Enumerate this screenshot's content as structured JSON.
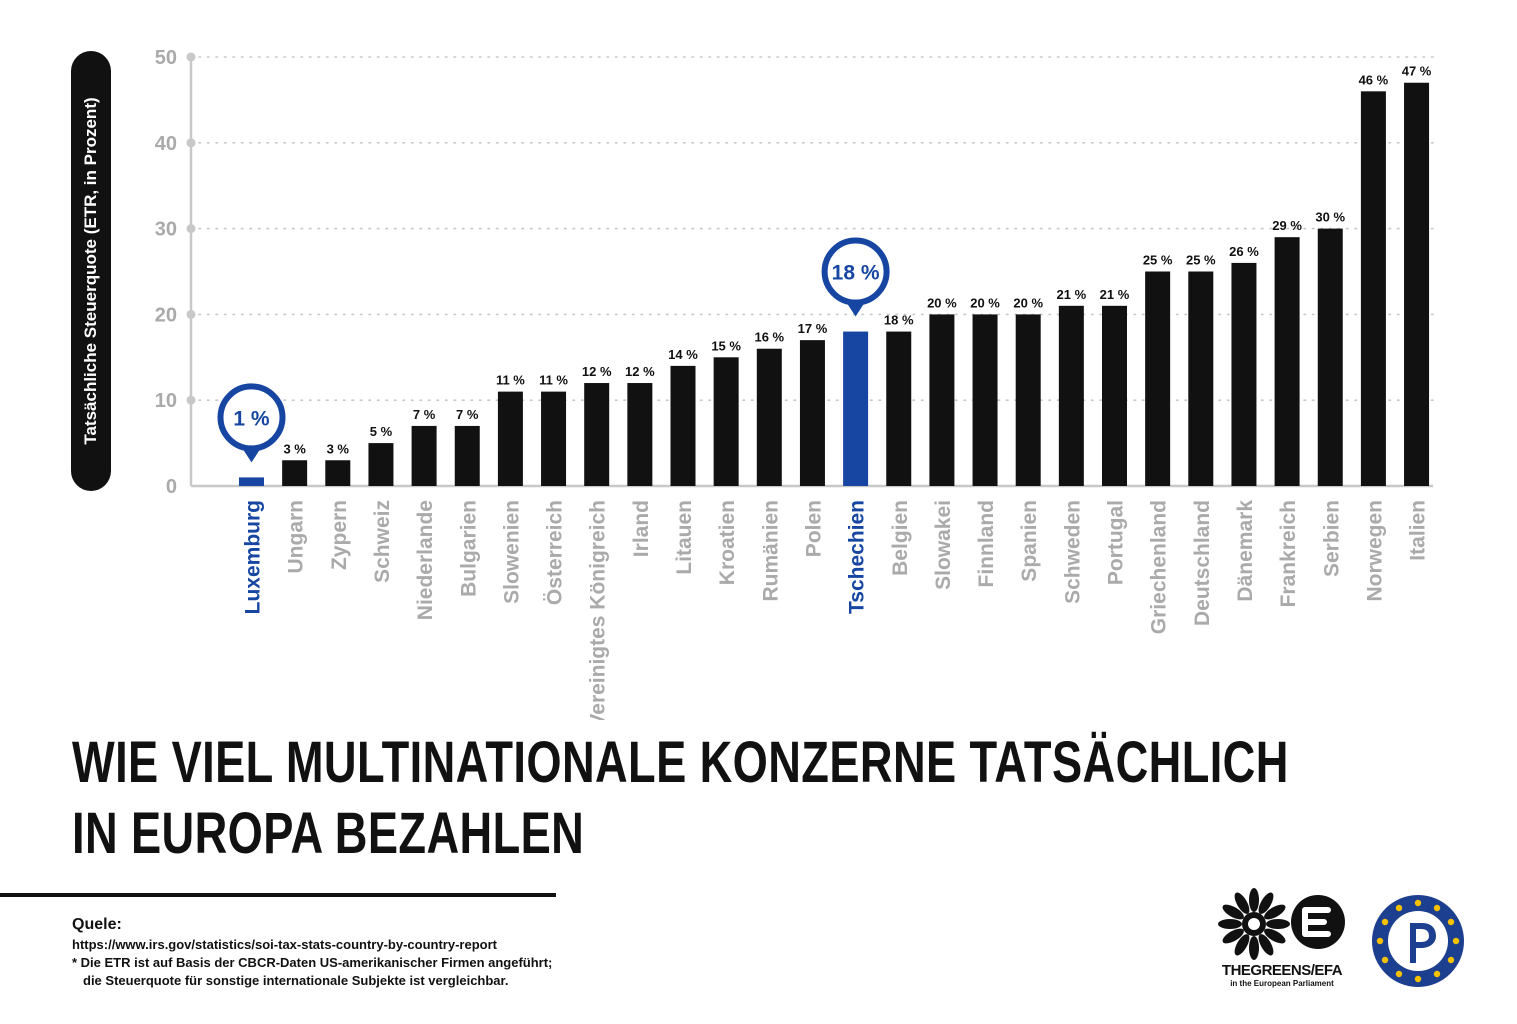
{
  "chart_data": {
    "type": "bar",
    "ylabel": "Tatsächliche Steuerquote (ETR, in Prozent)",
    "ylim": [
      0,
      50
    ],
    "yticks": [
      0,
      10,
      20,
      30,
      40,
      50
    ],
    "grid": true,
    "categories": [
      "Luxemburg",
      "Ungarn",
      "Zypern",
      "Schweiz",
      "Niederlande",
      "Bulgarien",
      "Slowenien",
      "Österreich",
      "Vereinigtes Königreich",
      "Irland",
      "Litauen",
      "Kroatien",
      "Rumänien",
      "Polen",
      "Tschechien",
      "Belgien",
      "Slowakei",
      "Finnland",
      "Spanien",
      "Schweden",
      "Portugal",
      "Griechenland",
      "Deutschland",
      "Dänemark",
      "Frankreich",
      "Serbien",
      "Norwegen",
      "Italien"
    ],
    "values": [
      1,
      3,
      3,
      5,
      7,
      7,
      11,
      11,
      12,
      12,
      14,
      15,
      16,
      17,
      18,
      18,
      20,
      20,
      20,
      21,
      21,
      25,
      25,
      26,
      29,
      30,
      46,
      47
    ],
    "value_labels": [
      "1 %",
      "3 %",
      "3 %",
      "5 %",
      "7 %",
      "7 %",
      "11 %",
      "11 %",
      "12 %",
      "12 %",
      "14 %",
      "15 %",
      "16 %",
      "17 %",
      "18 %",
      "18 %",
      "20 %",
      "20 %",
      "20 %",
      "21 %",
      "21 %",
      "25 %",
      "25 %",
      "26 %",
      "29 %",
      "30 %",
      "46 %",
      "47 %"
    ],
    "highlighted": [
      "Luxemburg",
      "Tschechien"
    ],
    "colors": {
      "bar": "#111111",
      "highlight": "#1746a2",
      "axis_label": "#aaaaaa",
      "grid": "#c8c8c8"
    }
  },
  "title": {
    "line1": "Wie viel multinationale Konzerne tatsächlich",
    "line2": "in Europa bezahlen"
  },
  "source": {
    "label": "Quele:",
    "url": "https://www.irs.gov/statistics/soi-tax-stats-country-by-country-report",
    "note_line1": "* Die ETR ist auf Basis der CBCR-Daten US-amerikanischer Firmen angeführt;",
    "note_line2": "die Steuerquote für sonstige internationale Subjekte ist vergleichbar."
  },
  "logos": {
    "greens_text": "THEGREENS/EFA",
    "greens_sub": "in the European Parliament"
  }
}
